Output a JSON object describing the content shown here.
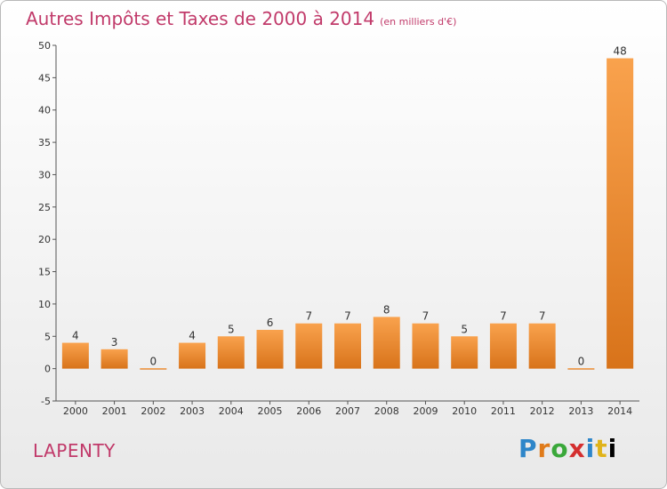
{
  "chart_data": {
    "type": "bar",
    "title": "Autres Impôts et Taxes de 2000 à 2014",
    "unit": "(en milliers d'€)",
    "categories": [
      "2000",
      "2001",
      "2002",
      "2003",
      "2004",
      "2005",
      "2006",
      "2007",
      "2008",
      "2009",
      "2010",
      "2011",
      "2012",
      "2013",
      "2014"
    ],
    "values": [
      4,
      3,
      0,
      4,
      5,
      6,
      7,
      7,
      8,
      7,
      5,
      7,
      7,
      0,
      48
    ],
    "ylim": [
      -5,
      50
    ],
    "yticks": [
      -5,
      0,
      5,
      10,
      15,
      20,
      25,
      30,
      35,
      40,
      45,
      50
    ],
    "grid": false,
    "bar_color": "#f08a2a"
  },
  "commune": "LAPENTY",
  "logo": {
    "letters": [
      "P",
      "r",
      "o",
      "x",
      "i",
      "t",
      "i"
    ]
  }
}
